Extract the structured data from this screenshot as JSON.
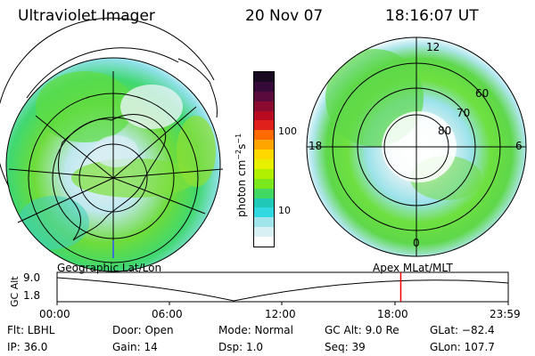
{
  "header": {
    "instrument": "Ultraviolet Imager",
    "date": "20 Nov 07",
    "time": "18:16:07 UT"
  },
  "geo_panel": {
    "label": "Geographic Lat/Lon"
  },
  "mag_panel": {
    "label": "Apex MLat/MLT",
    "mlt_labels": [
      "12",
      "18",
      "6",
      "0"
    ],
    "lat_labels": [
      "60",
      "70",
      "80"
    ]
  },
  "colorbar": {
    "unit_main": "photon cm",
    "unit_exp1": "−2",
    "unit_mid": "s",
    "unit_exp2": "−1",
    "ticks": [
      "100",
      "10"
    ],
    "colors": [
      "#1a0820",
      "#350a38",
      "#5a0a3c",
      "#8a0a30",
      "#b80a20",
      "#e0201a",
      "#ff6a00",
      "#ffa500",
      "#ffd800",
      "#e8f000",
      "#b0f000",
      "#7ae81c",
      "#40d860",
      "#20c8b8",
      "#30d8e0",
      "#a0e4ec",
      "#d8f0f4",
      "#ffffff"
    ]
  },
  "altitude_plot": {
    "axis_label": "GC Alt",
    "ymax": "9.0",
    "ymin": "1.8",
    "time_ticks": [
      "00:00",
      "06:00",
      "12:00",
      "18:00",
      "23:59"
    ],
    "current_time_marker_hours": 18.27,
    "marker_color": "#ff0000"
  },
  "info": {
    "filter": "Flt: LBHL",
    "door": "Door: Open",
    "mode": "Mode: Normal",
    "gc_alt": "GC Alt: 9.0 Re",
    "glat": "GLat: −82.4",
    "ip": "IP: 36.0",
    "gain": "Gain: 14",
    "dsp": "Dsp:    1.0",
    "seq": "Seq: 39",
    "glon": "GLon: 107.7"
  }
}
